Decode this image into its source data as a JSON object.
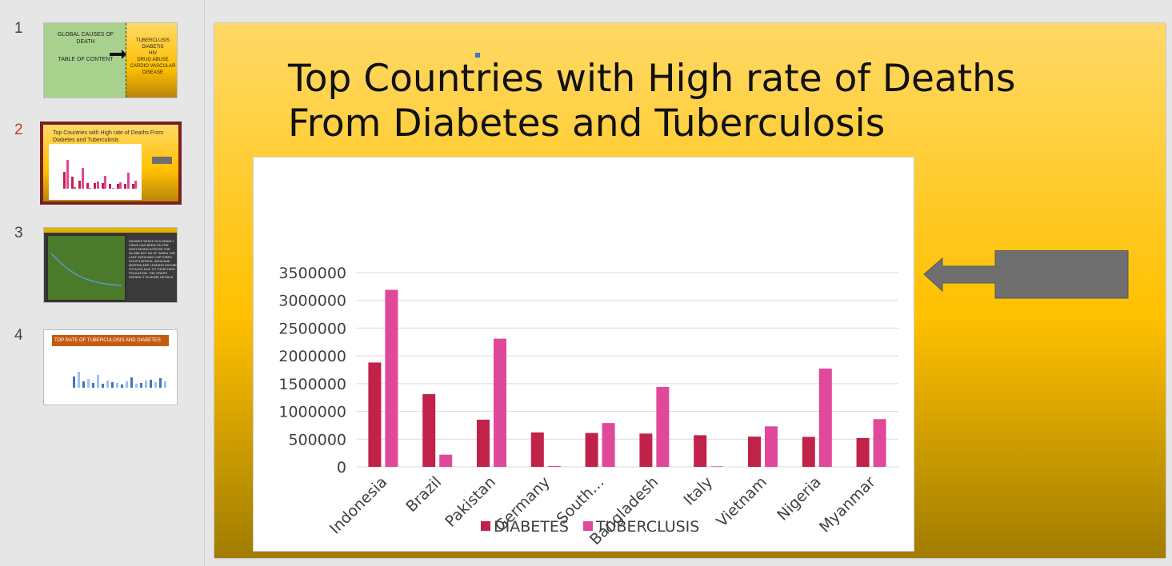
{
  "thumbnails": [
    {
      "number": "1",
      "left_lines": [
        "GLOBAL CAUSES OF",
        "DEATH"
      ],
      "left_sub": "TABLE OF CONTENT",
      "right_lines": [
        "TUBERCLUSIS",
        "DIABETIS",
        "HIV",
        "DRUG ABUSE",
        "CARDIO VASCULAR",
        "DISEASE"
      ]
    },
    {
      "number": "2",
      "title": "Top Countries with High rate of Deaths From Diabetes and Tuberculosis"
    },
    {
      "number": "3",
      "text": "HIV/AIDS WHICH IS A DEADLY VIRUS HAS BEEN ON THE HIGH RISING ACROSS THE GLOBE BUT AS OF WHEN THE LAST DATA WAS CAPTURED SOUTH AFRICA, INDIA AND NIGERIA ARE LEADING WHYBE ITS ALSO DUE TO THEIR HIGH POULATION. THE GRAPH SHOWS IT IN MORE DETAILS"
    },
    {
      "number": "4",
      "banner": "TOP RATE OF TUBERCULOSIS AND DIABETES"
    }
  ],
  "slide": {
    "title": "Top Countries with High rate of Deaths From Diabetes and Tuberculosis"
  },
  "colors": {
    "diabetes": "#c0224a",
    "tuberculosis": "#e0489a",
    "gridline": "#d9d9d9",
    "arrow_fill": "#6f6f6f"
  },
  "chart_data": {
    "type": "bar",
    "categories": [
      "Indonesia",
      "Brazil",
      "Pakistan",
      "Germany",
      "South…",
      "Bangladesh",
      "Italy",
      "Vietnam",
      "Nigeria",
      "Myanmar"
    ],
    "series": [
      {
        "name": "DIABETES",
        "values": [
          1880000,
          1310000,
          850000,
          620000,
          610000,
          600000,
          570000,
          545000,
          540000,
          520000
        ]
      },
      {
        "name": "TUBERCLUSIS",
        "values": [
          3190000,
          220000,
          2310000,
          15000,
          790000,
          1440000,
          10000,
          730000,
          1770000,
          860000
        ]
      }
    ],
    "y_ticks": [
      "0",
      "500000",
      "1000000",
      "1500000",
      "2000000",
      "2500000",
      "3000000",
      "3500000"
    ],
    "ylim": [
      0,
      3500000
    ],
    "grid": true,
    "legend_position": "bottom"
  }
}
